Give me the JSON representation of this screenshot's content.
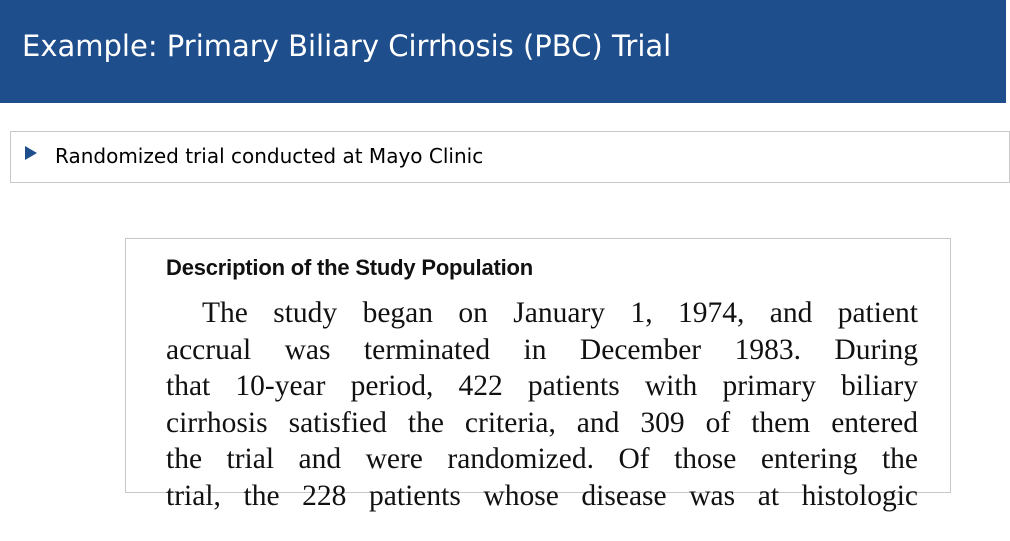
{
  "slide": {
    "title": "Example: Primary Biliary Cirrhosis (PBC) Trial"
  },
  "bullets": [
    {
      "text": "Randomized trial conducted at Mayo Clinic"
    }
  ],
  "excerpt": {
    "heading": "Description of the Study Population",
    "lines": [
      "The study began on January 1, 1974, and patient",
      "accrual was terminated in December 1983. During",
      "that 10-year period, 422 patients with primary biliary",
      "cirrhosis satisfied the criteria, and 309 of them entered",
      "the trial and were randomized. Of those entering the",
      "trial, the 228 patients whose disease was at histologic"
    ]
  },
  "colors": {
    "header_background": "#1f4e8c",
    "bullet_marker": "#1f4e8c"
  }
}
